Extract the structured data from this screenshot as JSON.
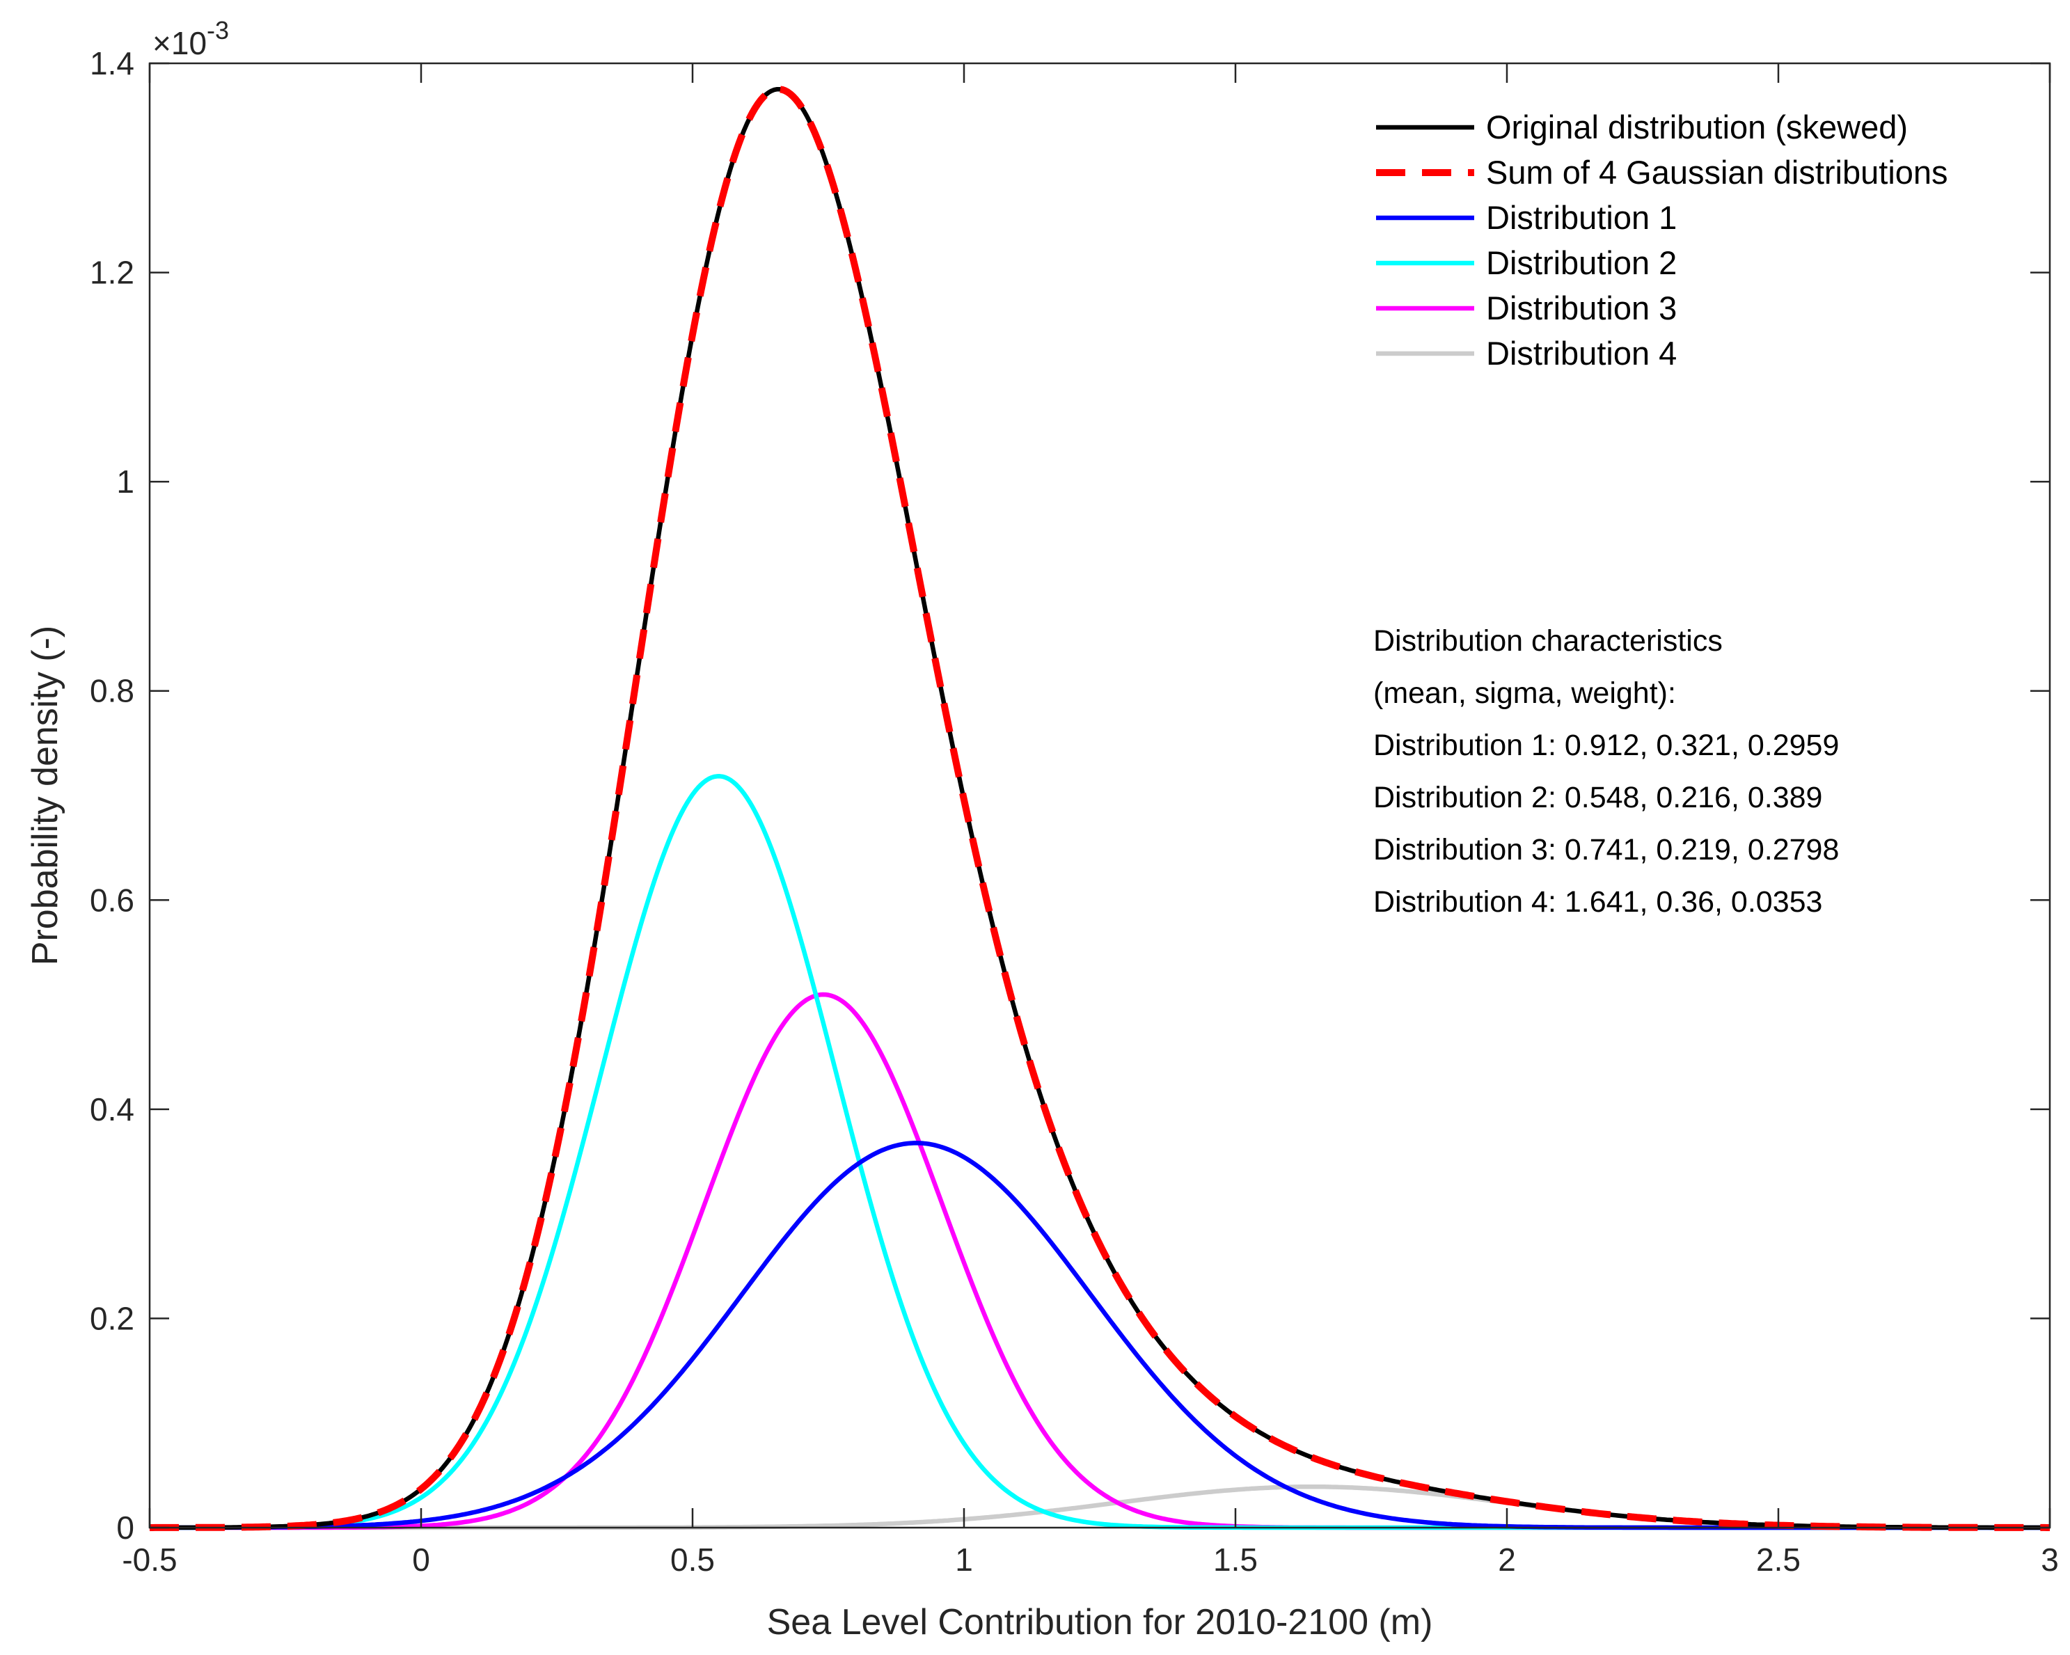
{
  "chart_data": {
    "type": "line",
    "title": "",
    "xlabel": "Sea Level Contribution for 2010-2100 (m)",
    "ylabel": "Probability density (-)",
    "y_exponent_label": "×10",
    "y_exponent_power": "-3",
    "xlim": [
      -0.5,
      3
    ],
    "ylim": [
      0,
      1.4
    ],
    "xticks": [
      -0.5,
      0,
      0.5,
      1,
      1.5,
      2,
      2.5,
      3
    ],
    "xtick_labels": [
      "-0.5",
      "0",
      "0.5",
      "1",
      "1.5",
      "2",
      "2.5",
      "3"
    ],
    "yticks": [
      0,
      0.2,
      0.4,
      0.6,
      0.8,
      1,
      1.2,
      1.4
    ],
    "ytick_labels": [
      "0",
      "0.2",
      "0.4",
      "0.6",
      "0.8",
      "1",
      "1.2",
      "1.4"
    ],
    "grid": false,
    "legend_position": "top-right",
    "components": [
      {
        "name": "Distribution 1",
        "mean": 0.912,
        "sigma": 0.321,
        "weight": 0.2959,
        "color": "#0000ff"
      },
      {
        "name": "Distribution 2",
        "mean": 0.548,
        "sigma": 0.216,
        "weight": 0.389,
        "color": "#00ffff"
      },
      {
        "name": "Distribution 3",
        "mean": 0.741,
        "sigma": 0.219,
        "weight": 0.2798,
        "color": "#ff00ff"
      },
      {
        "name": "Distribution 4",
        "mean": 1.641,
        "sigma": 0.36,
        "weight": 0.0353,
        "color": "#cccccc"
      }
    ],
    "series": [
      {
        "name": "Original distribution (skewed)",
        "kind": "sum",
        "color": "#000000",
        "style": "solid"
      },
      {
        "name": "Sum of 4 Gaussian distributions",
        "kind": "sum",
        "color": "#ff0000",
        "style": "dashed"
      },
      {
        "name": "Distribution 1",
        "kind": "component",
        "index": 0,
        "color": "#0000ff",
        "style": "solid"
      },
      {
        "name": "Distribution 2",
        "kind": "component",
        "index": 1,
        "color": "#00ffff",
        "style": "solid"
      },
      {
        "name": "Distribution 3",
        "kind": "component",
        "index": 2,
        "color": "#ff00ff",
        "style": "solid"
      },
      {
        "name": "Distribution 4",
        "kind": "component",
        "index": 3,
        "color": "#cccccc",
        "style": "solid"
      }
    ],
    "annotation": [
      "Distribution characteristics",
      "(mean, sigma, weight):",
      "Distribution 1: 0.912, 0.321, 0.2959",
      "Distribution 2: 0.548, 0.216, 0.389",
      "Distribution 3: 0.741, 0.219, 0.2798",
      "Distribution 4: 1.641, 0.36, 0.0353"
    ]
  }
}
